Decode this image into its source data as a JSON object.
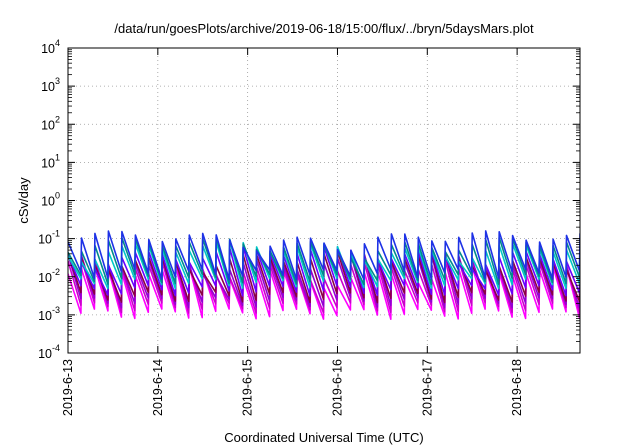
{
  "chart_data": {
    "type": "line",
    "title": "/data/run/goesPlots/archive/2019-06-18/15:00/flux/../bryn/5daysMars.plot",
    "xlabel": "Coordinated Universal Time (UTC)",
    "ylabel": "cSv/day",
    "yscale": "log",
    "ylim_exponents": [
      -4,
      4
    ],
    "y_ticks": [
      {
        "base": "10",
        "exp": "-4"
      },
      {
        "base": "10",
        "exp": "-3"
      },
      {
        "base": "10",
        "exp": "-2"
      },
      {
        "base": "10",
        "exp": "-1"
      },
      {
        "base": "10",
        "exp": "0"
      },
      {
        "base": "10",
        "exp": "1"
      },
      {
        "base": "10",
        "exp": "2"
      },
      {
        "base": "10",
        "exp": "3"
      },
      {
        "base": "10",
        "exp": "4"
      }
    ],
    "x_ticks": [
      "2019-6-13",
      "2019-6-14",
      "2019-6-15",
      "2019-6-16",
      "2019-6-17",
      "2019-6-18"
    ],
    "xlim_days": [
      0,
      5.7
    ],
    "grid": true,
    "sawtooth_period_days": 0.15,
    "series": [
      {
        "color": "#ff00ff",
        "peak": 0.012,
        "trough": 0.0011
      },
      {
        "color": "#cc00cc",
        "peak": 0.018,
        "trough": 0.0016
      },
      {
        "color": "#9400d3",
        "peak": 0.025,
        "trough": 0.0022
      },
      {
        "color": "#8b0045",
        "peak": 0.03,
        "trough": 0.003
      },
      {
        "color": "#6a00ff",
        "peak": 0.04,
        "trough": 0.0045
      },
      {
        "color": "#00c8c8",
        "peak": 0.055,
        "trough": 0.007
      },
      {
        "color": "#008b8b",
        "peak": 0.07,
        "trough": 0.009
      },
      {
        "color": "#1e32e6",
        "peak": 0.1,
        "trough": 0.012
      }
    ]
  }
}
